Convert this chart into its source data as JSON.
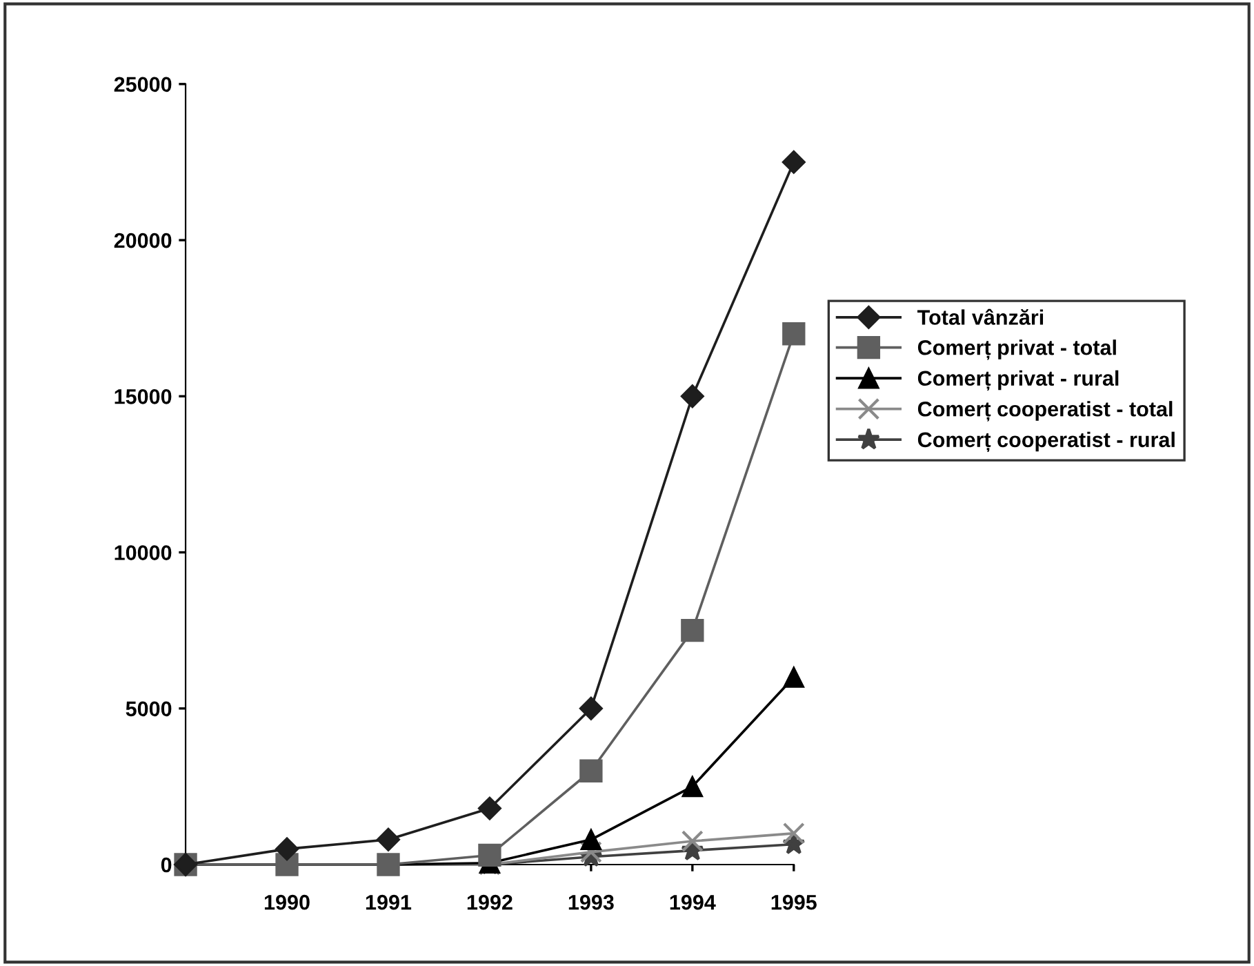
{
  "chart_data": {
    "type": "line",
    "categories": [
      null,
      "1990",
      "1991",
      "1992",
      "1993",
      "1994",
      "1995"
    ],
    "series": [
      {
        "name": "Total vânzări",
        "color": "#1e1e1e",
        "marker": "diamond",
        "values": [
          0,
          500,
          800,
          1800,
          5000,
          15000,
          22500
        ]
      },
      {
        "name": "Comerț privat - total",
        "color": "#5f5f5f",
        "marker": "square",
        "values": [
          0,
          0,
          0,
          300,
          3000,
          7500,
          17000
        ]
      },
      {
        "name": "Comerț privat - rural",
        "color": "#000000",
        "marker": "triangle",
        "values": [
          0,
          0,
          0,
          50,
          800,
          2500,
          6000
        ]
      },
      {
        "name": "Comerț cooperatist - total",
        "color": "#8a8a8a",
        "marker": "cross",
        "values": [
          0,
          0,
          0,
          0,
          400,
          750,
          1000
        ]
      },
      {
        "name": "Comerț cooperatist - rural",
        "color": "#404040",
        "marker": "star",
        "values": [
          0,
          0,
          0,
          0,
          250,
          450,
          650
        ]
      }
    ],
    "ylim": [
      0,
      25000
    ],
    "yticks": [
      0,
      5000,
      10000,
      15000,
      20000,
      25000
    ],
    "grid": false,
    "legend": "right",
    "line_style": "solid"
  }
}
